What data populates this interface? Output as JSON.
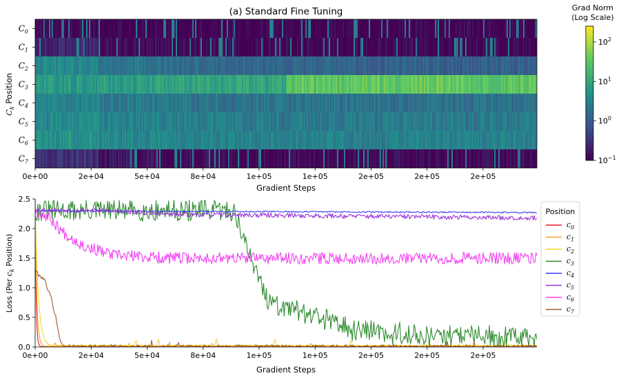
{
  "chart_data": [
    {
      "type": "heatmap",
      "title": "(a) Standard Fine Tuning",
      "xlabel": "Gradient Steps",
      "ylabel": "C_k Position",
      "ylabel_text": {
        "symbol": "C",
        "sub": "k",
        "rest": " Position"
      },
      "x_tick_labels": [
        "0e+00",
        "2e+04",
        "5e+04",
        "8e+04",
        "1e+05",
        "1e+05",
        "2e+05",
        "2e+05",
        "2e+05"
      ],
      "x_tick_values": [
        0,
        25000,
        50000,
        75000,
        100000,
        125000,
        150000,
        175000,
        200000
      ],
      "xlim": [
        0,
        224000
      ],
      "rows": [
        {
          "symbol": "C",
          "sub": "0"
        },
        {
          "symbol": "C",
          "sub": "1"
        },
        {
          "symbol": "C",
          "sub": "2"
        },
        {
          "symbol": "C",
          "sub": "3"
        },
        {
          "symbol": "C",
          "sub": "4"
        },
        {
          "symbol": "C",
          "sub": "5"
        },
        {
          "symbol": "C",
          "sub": "6"
        },
        {
          "symbol": "C",
          "sub": "7"
        }
      ],
      "mean_log10_grad_norm": [
        [
          -1.0,
          -1.0,
          -1.0,
          -1.0,
          -1.0,
          -1.0,
          -1.0,
          -1.0
        ],
        [
          -0.6,
          -0.9,
          -0.95,
          -0.95,
          -0.95,
          -0.95,
          -0.95,
          -0.95
        ],
        [
          0.6,
          0.3,
          0.2,
          0.15,
          0.1,
          0.05,
          0.05,
          0.05
        ],
        [
          0.8,
          0.9,
          0.95,
          1.0,
          1.5,
          1.55,
          1.55,
          1.5
        ],
        [
          0.5,
          0.4,
          0.35,
          0.3,
          0.3,
          0.3,
          0.3,
          0.3
        ],
        [
          0.6,
          0.5,
          0.45,
          0.4,
          0.4,
          0.4,
          0.4,
          0.4
        ],
        [
          0.7,
          0.6,
          0.55,
          0.5,
          0.5,
          0.5,
          0.5,
          0.5
        ],
        [
          -0.5,
          -0.8,
          -0.9,
          -0.95,
          -0.95,
          -0.95,
          -0.95,
          -0.95
        ]
      ],
      "colorbar": {
        "title_line1": "Grad Norm",
        "title_line2": "(Log Scale)",
        "scale": "log",
        "range_log10": [
          -1,
          2.4
        ],
        "tick_exponents": [
          "2",
          "1",
          "0",
          "−1"
        ],
        "tick_values": [
          100,
          10,
          1,
          0.1
        ],
        "base": "10",
        "colors": [
          "#440154",
          "#3b528b",
          "#21918c",
          "#5ec962",
          "#fde725"
        ]
      }
    },
    {
      "type": "line",
      "xlabel": "Gradient Steps",
      "ylabel": "Loss (Per c_k Position)",
      "ylabel_text": {
        "before": "Loss (Per ",
        "symbol": "c",
        "sub": "k",
        "after": " Position)"
      },
      "x_tick_labels": [
        "0e+00",
        "2e+04",
        "5e+04",
        "8e+04",
        "1e+05",
        "1e+05",
        "2e+05",
        "2e+05",
        "2e+05"
      ],
      "x_tick_values": [
        0,
        25000,
        50000,
        75000,
        100000,
        125000,
        150000,
        175000,
        200000
      ],
      "xlim": [
        0,
        224000
      ],
      "ylim": [
        0,
        2.5
      ],
      "y_tick_values": [
        0.0,
        0.5,
        1.0,
        1.5,
        2.0,
        2.5
      ],
      "y_tick_labels": [
        "0.0",
        "0.5",
        "1.0",
        "1.5",
        "2.0",
        "2.5"
      ],
      "legend": {
        "title": "Position",
        "placement": "outside-right"
      },
      "series": [
        {
          "name": "c0",
          "symbol": "c",
          "sub": "0",
          "color": "#e41a1c",
          "kind": "drop",
          "start": 2.5,
          "end": 0.003,
          "tau": 400,
          "noise": 0.003,
          "seed": 11,
          "spikes": []
        },
        {
          "name": "c1",
          "symbol": "c",
          "sub": "1",
          "color": "#f59f2c",
          "kind": "drop",
          "start": 2.45,
          "end": 0.01,
          "tau": 700,
          "noise": 0.006,
          "seed": 17,
          "spikes": [
            [
              9000,
              0.05
            ],
            [
              42000,
              0.05
            ],
            [
              60000,
              0.07
            ],
            [
              79000,
              0.04
            ],
            [
              123000,
              0.04
            ]
          ]
        },
        {
          "name": "c2",
          "symbol": "c",
          "sub": "2",
          "color": "#f6d62a",
          "kind": "drop",
          "start": 2.4,
          "end": 0.02,
          "tau": 1400,
          "noise": 0.018,
          "seed": 23,
          "spikes": [
            [
              45000,
              0.08
            ],
            [
              55000,
              0.09
            ],
            [
              81000,
              0.1
            ],
            [
              107000,
              0.09
            ],
            [
              141000,
              0.07
            ],
            [
              176000,
              0.08
            ],
            [
              210000,
              0.1
            ]
          ]
        },
        {
          "name": "c3",
          "symbol": "c",
          "sub": "3",
          "color": "#2e8b2e",
          "kind": "phase",
          "start": 2.3,
          "noise": 0.18,
          "seed": 31,
          "points": [
            [
              0,
              2.3
            ],
            [
              88000,
              2.3
            ],
            [
              90000,
              2.2
            ],
            [
              95000,
              1.6
            ],
            [
              100000,
              1.2
            ],
            [
              104000,
              0.75
            ],
            [
              115000,
              0.6
            ],
            [
              130000,
              0.45
            ],
            [
              142000,
              0.3
            ],
            [
              160000,
              0.22
            ],
            [
              190000,
              0.18
            ],
            [
              224000,
              0.15
            ]
          ]
        },
        {
          "name": "c4",
          "symbol": "c",
          "sub": "4",
          "color": "#3b3bf0",
          "kind": "flat",
          "start": 2.3,
          "end": 2.27,
          "noise": 0.012,
          "seed": 41
        },
        {
          "name": "c5",
          "symbol": "c",
          "sub": "5",
          "color": "#9b30d9",
          "kind": "phase",
          "start": 2.3,
          "noise": 0.04,
          "seed": 53,
          "points": [
            [
              0,
              2.32
            ],
            [
              35000,
              2.3
            ],
            [
              60000,
              2.24
            ],
            [
              224000,
              2.18
            ]
          ]
        },
        {
          "name": "c6",
          "symbol": "c",
          "sub": "6",
          "color": "#f23ef2",
          "kind": "phase",
          "start": 2.3,
          "noise": 0.1,
          "seed": 67,
          "points": [
            [
              0,
              2.3
            ],
            [
              6000,
              2.2
            ],
            [
              12000,
              1.95
            ],
            [
              22000,
              1.7
            ],
            [
              35000,
              1.55
            ],
            [
              60000,
              1.5
            ],
            [
              224000,
              1.5
            ]
          ]
        },
        {
          "name": "c7",
          "symbol": "c",
          "sub": "7",
          "color": "#9c5a2e",
          "kind": "phase",
          "start": 1.3,
          "noise": 0.03,
          "seed": 79,
          "points": [
            [
              0,
              1.3
            ],
            [
              1500,
              1.22
            ],
            [
              4000,
              1.15
            ],
            [
              7000,
              0.85
            ],
            [
              9500,
              0.45
            ],
            [
              11500,
              0.05
            ],
            [
              14000,
              0.01
            ],
            [
              224000,
              0.005
            ]
          ],
          "spikes": [
            [
              52000,
              0.1
            ],
            [
              64000,
              0.08
            ],
            [
              160000,
              0.05
            ],
            [
              184000,
              0.06
            ],
            [
              196000,
              0.07
            ]
          ]
        }
      ]
    }
  ]
}
